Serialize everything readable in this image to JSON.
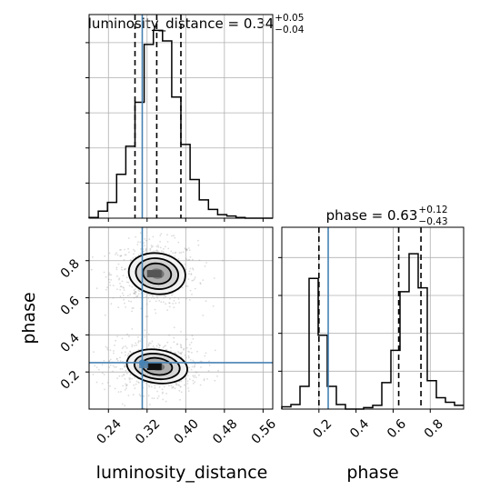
{
  "chart_data": {
    "type": "corner",
    "parameters": [
      "luminosity_distance",
      "phase"
    ],
    "titles": {
      "luminosity_distance": {
        "label": "luminosity_distance",
        "median": "0.34",
        "plus": "+0.05",
        "minus": "−0.04"
      },
      "phase": {
        "label": "phase",
        "median": "0.63",
        "plus": "+0.12",
        "minus": "−0.43"
      }
    },
    "xlabel_left": "luminosity_distance",
    "xlabel_right": "phase",
    "ylabel": "phase",
    "truths": {
      "luminosity_distance": 0.31,
      "phase": 0.25
    },
    "quantiles": {
      "luminosity_distance": [
        0.295,
        0.34,
        0.39
      ],
      "phase": [
        0.2,
        0.63,
        0.75
      ]
    },
    "luminosity_distance_axis": {
      "lim": [
        0.2,
        0.58
      ],
      "ticks": [
        0.24,
        0.32,
        0.4,
        0.48,
        0.56
      ],
      "tick_labels": [
        "0.24",
        "0.32",
        "0.40",
        "0.48",
        "0.56"
      ]
    },
    "phase_axis": {
      "lim": [
        0.0,
        0.98
      ],
      "ticks": [
        0.2,
        0.4,
        0.6,
        0.8
      ],
      "tick_labels": [
        "0.2",
        "0.4",
        "0.6",
        "0.8"
      ]
    },
    "hist_luminosity_distance": {
      "edges": [
        0.2,
        0.219,
        0.238,
        0.257,
        0.276,
        0.295,
        0.314,
        0.333,
        0.352,
        0.371,
        0.39,
        0.409,
        0.428,
        0.447,
        0.466,
        0.485,
        0.504,
        0.523,
        0.542,
        0.561,
        0.58
      ],
      "values": [
        2,
        20,
        45,
        125,
        205,
        330,
        495,
        535,
        505,
        345,
        210,
        110,
        52,
        25,
        10,
        6,
        2,
        0,
        0,
        0
      ]
    },
    "hist_phase": {
      "edges": [
        0.0,
        0.049,
        0.098,
        0.147,
        0.196,
        0.245,
        0.294,
        0.343,
        0.392,
        0.441,
        0.49,
        0.539,
        0.588,
        0.637,
        0.686,
        0.735,
        0.784,
        0.833,
        0.882,
        0.931,
        0.98
      ],
      "values": [
        6,
        12,
        60,
        345,
        195,
        60,
        12,
        0,
        0,
        4,
        10,
        70,
        155,
        310,
        410,
        320,
        75,
        30,
        18,
        10
      ]
    },
    "ylim_hist_luminosity_distance": [
      0,
      580
    ],
    "ylim_hist_phase": [
      0,
      480
    ],
    "yticks_hist_luminosity_distance": [
      100,
      200,
      300,
      400,
      500
    ],
    "yticks_hist_phase": [
      100,
      200,
      300,
      400
    ],
    "density_2d": {
      "modes": [
        {
          "x": 0.335,
          "y": 0.73,
          "sx": 0.028,
          "sy": 0.055,
          "weight": 0.5
        },
        {
          "x": 0.335,
          "y": 0.23,
          "sx": 0.03,
          "sy": 0.045,
          "weight": 0.5
        }
      ],
      "contour_levels": [
        "0.5-sigma",
        "1-sigma",
        "1.5-sigma",
        "2-sigma"
      ]
    }
  }
}
